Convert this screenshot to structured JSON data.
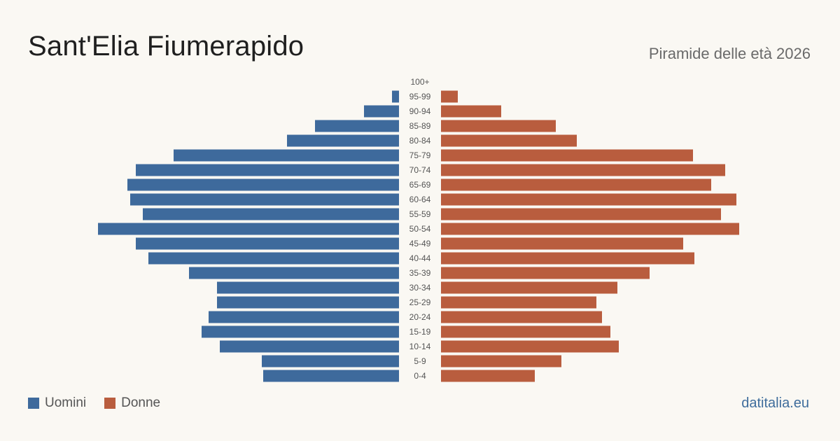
{
  "header": {
    "title": "Sant'Elia Fiumerapido",
    "subtitle": "Piramide delle età 2026"
  },
  "legend": {
    "men_label": "Uomini",
    "women_label": "Donne"
  },
  "brand": "datitalia.eu",
  "colors": {
    "men": "#3e6a9c",
    "women": "#b95d3e",
    "background": "#faf8f3",
    "label": "#555555"
  },
  "chart_data": {
    "type": "bar",
    "orientation": "horizontal-pyramid",
    "categories": [
      "100+",
      "95-99",
      "90-94",
      "85-89",
      "80-84",
      "75-79",
      "70-74",
      "65-69",
      "60-64",
      "55-59",
      "50-54",
      "45-49",
      "40-44",
      "35-39",
      "30-34",
      "25-29",
      "20-24",
      "15-19",
      "10-14",
      "5-9",
      "0-4"
    ],
    "series": [
      {
        "name": "Uomini",
        "values": [
          0,
          5,
          25,
          60,
          80,
          161,
          188,
          194,
          192,
          183,
          215,
          188,
          179,
          150,
          130,
          130,
          136,
          141,
          128,
          98,
          97
        ]
      },
      {
        "name": "Donne",
        "values": [
          0,
          12,
          43,
          82,
          97,
          180,
          203,
          193,
          211,
          200,
          213,
          173,
          181,
          149,
          126,
          111,
          115,
          121,
          127,
          86,
          67
        ]
      }
    ],
    "xlim": [
      0,
      215
    ],
    "grid": false,
    "legend_position": "bottom-left"
  }
}
